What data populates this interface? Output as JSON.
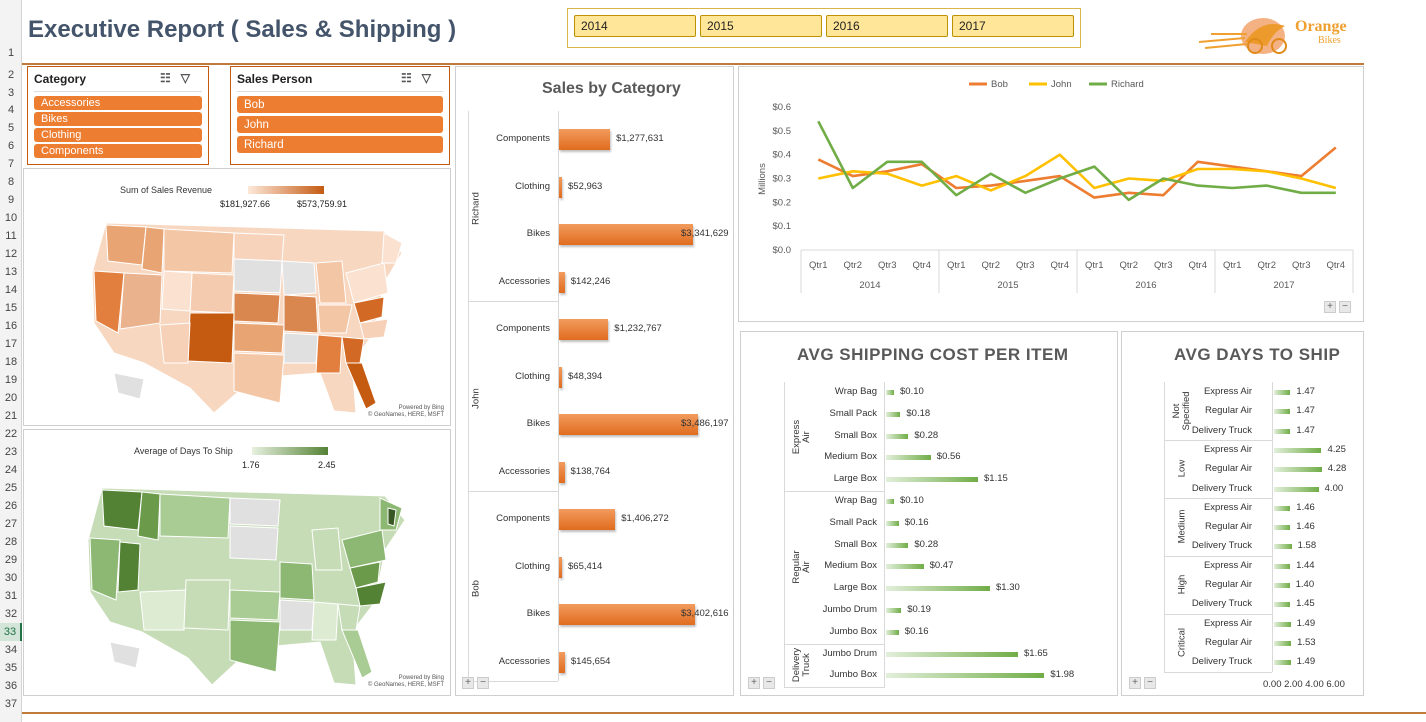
{
  "header": {
    "title": "Executive Report ( Sales & Shipping )",
    "years": [
      "2014",
      "2015",
      "2016",
      "2017"
    ],
    "logo_line1": "Orange",
    "logo_line2": "Bikes"
  },
  "row_numbers": [
    "1",
    "2",
    "3",
    "4",
    "5",
    "6",
    "7",
    "8",
    "9",
    "10",
    "11",
    "12",
    "13",
    "14",
    "15",
    "16",
    "17",
    "18",
    "19",
    "20",
    "21",
    "22",
    "23",
    "24",
    "25",
    "26",
    "27",
    "28",
    "29",
    "30",
    "31",
    "32",
    "33",
    "34",
    "35",
    "36",
    "37"
  ],
  "selected_row": "33",
  "slicers": {
    "category": {
      "title": "Category",
      "items": [
        "Accessories",
        "Bikes",
        "Clothing",
        "Components"
      ]
    },
    "sales_person": {
      "title": "Sales Person",
      "items": [
        "Bob",
        "John",
        "Richard"
      ]
    }
  },
  "maps": {
    "sales": {
      "title": "Sum of Sales Revenue",
      "min": "$181,927.66",
      "max": "$573,759.91",
      "powered_by": "Powered by Bing",
      "credits": "© GeoNames, HERE, MSFT",
      "color_low": "#f8dcc8",
      "color_high": "#c55a11"
    },
    "days": {
      "title": "Average of Days To Ship",
      "min": "1.76",
      "max": "2.45",
      "powered_by": "Powered by Bing",
      "credits": "© GeoNames, HERE, MSFT",
      "color_low": "#dcebd2",
      "color_high": "#548235"
    }
  },
  "chart_data": [
    {
      "type": "bar",
      "title": "Sales by Category",
      "groups": [
        {
          "name": "Richard",
          "categories": [
            "Components",
            "Clothing",
            "Bikes",
            "Accessories"
          ],
          "values": [
            1277631,
            52963,
            3341629,
            142246
          ],
          "labels": [
            "$1,277,631",
            "$52,963",
            "$3,341,629",
            "$142,246"
          ]
        },
        {
          "name": "John",
          "categories": [
            "Components",
            "Clothing",
            "Bikes",
            "Accessories"
          ],
          "values": [
            1232767,
            48394,
            3486197,
            138764
          ],
          "labels": [
            "$1,232,767",
            "$48,394",
            "$3,486,197",
            "$138,764"
          ]
        },
        {
          "name": "Bob",
          "categories": [
            "Components",
            "Clothing",
            "Bikes",
            "Accessories"
          ],
          "values": [
            1406272,
            65414,
            3402616,
            145654
          ],
          "labels": [
            "$1,406,272",
            "$65,414",
            "$3,402,616",
            "$145,654"
          ]
        }
      ],
      "color": "#ed7d31"
    },
    {
      "type": "line",
      "ylabel": "Millions",
      "yticks": [
        "$0.0",
        "$0.1",
        "$0.2",
        "$0.3",
        "$0.4",
        "$0.5",
        "$0.6"
      ],
      "ylim": [
        0,
        0.6
      ],
      "quarters": [
        "Qtr1",
        "Qtr2",
        "Qtr3",
        "Qtr4"
      ],
      "years": [
        "2014",
        "2015",
        "2016",
        "2017"
      ],
      "series": [
        {
          "name": "Bob",
          "color": "#ed7d31",
          "values": [
            0.38,
            0.31,
            0.33,
            0.36,
            0.26,
            0.27,
            0.29,
            0.31,
            0.22,
            0.24,
            0.23,
            0.37,
            0.35,
            0.33,
            0.31,
            0.43
          ]
        },
        {
          "name": "John",
          "color": "#ffc000",
          "values": [
            0.3,
            0.33,
            0.32,
            0.27,
            0.31,
            0.25,
            0.31,
            0.4,
            0.26,
            0.3,
            0.29,
            0.34,
            0.34,
            0.33,
            0.3,
            0.26
          ]
        },
        {
          "name": "Richard",
          "color": "#70ad47",
          "values": [
            0.54,
            0.26,
            0.37,
            0.37,
            0.23,
            0.32,
            0.24,
            0.3,
            0.35,
            0.21,
            0.3,
            0.27,
            0.26,
            0.27,
            0.24,
            0.24
          ]
        }
      ]
    },
    {
      "type": "bar",
      "title": "AVG SHIPPING COST PER ITEM",
      "groups": [
        {
          "name": "Express Air",
          "categories": [
            "Wrap Bag",
            "Small Pack",
            "Small Box",
            "Medium Box",
            "Large Box"
          ],
          "values": [
            0.1,
            0.18,
            0.28,
            0.56,
            1.15
          ],
          "labels": [
            "$0.10",
            "$0.18",
            "$0.28",
            "$0.56",
            "$1.15"
          ]
        },
        {
          "name": "Regular Air",
          "categories": [
            "Wrap Bag",
            "Small Pack",
            "Small Box",
            "Medium Box",
            "Large Box",
            "Jumbo Drum",
            "Jumbo Box"
          ],
          "values": [
            0.1,
            0.16,
            0.28,
            0.47,
            1.3,
            0.19,
            0.16
          ],
          "labels": [
            "$0.10",
            "$0.16",
            "$0.28",
            "$0.47",
            "$1.30",
            "$0.19",
            "$0.16"
          ]
        },
        {
          "name": "Delivery Truck",
          "categories": [
            "Jumbo Drum",
            "Jumbo Box"
          ],
          "values": [
            1.65,
            1.98
          ],
          "labels": [
            "$1.65",
            "$1.98"
          ]
        }
      ],
      "color": "#70ad47"
    },
    {
      "type": "bar",
      "title": "AVG DAYS TO SHIP",
      "xticks": "0.00 2.00 4.00 6.00",
      "groups": [
        {
          "name": "Not Specified",
          "categories": [
            "Express Air",
            "Regular Air",
            "Delivery Truck"
          ],
          "values": [
            1.47,
            1.47,
            1.47
          ],
          "labels": [
            "1.47",
            "1.47",
            "1.47"
          ]
        },
        {
          "name": "Low",
          "categories": [
            "Express Air",
            "Regular Air",
            "Delivery Truck"
          ],
          "values": [
            4.25,
            4.28,
            4.0
          ],
          "labels": [
            "4.25",
            "4.28",
            "4.00"
          ]
        },
        {
          "name": "Medium",
          "categories": [
            "Express Air",
            "Regular Air",
            "Delivery Truck"
          ],
          "values": [
            1.46,
            1.46,
            1.58
          ],
          "labels": [
            "1.46",
            "1.46",
            "1.58"
          ]
        },
        {
          "name": "High",
          "categories": [
            "Express Air",
            "Regular Air",
            "Delivery Truck"
          ],
          "values": [
            1.44,
            1.4,
            1.45
          ],
          "labels": [
            "1.44",
            "1.40",
            "1.45"
          ]
        },
        {
          "name": "Critical",
          "categories": [
            "Express Air",
            "Regular Air",
            "Delivery Truck"
          ],
          "values": [
            1.49,
            1.53,
            1.49
          ],
          "labels": [
            "1.49",
            "1.53",
            "1.49"
          ]
        }
      ],
      "color": "#70ad47"
    }
  ],
  "controls": {
    "expand": "+",
    "collapse": "−"
  }
}
